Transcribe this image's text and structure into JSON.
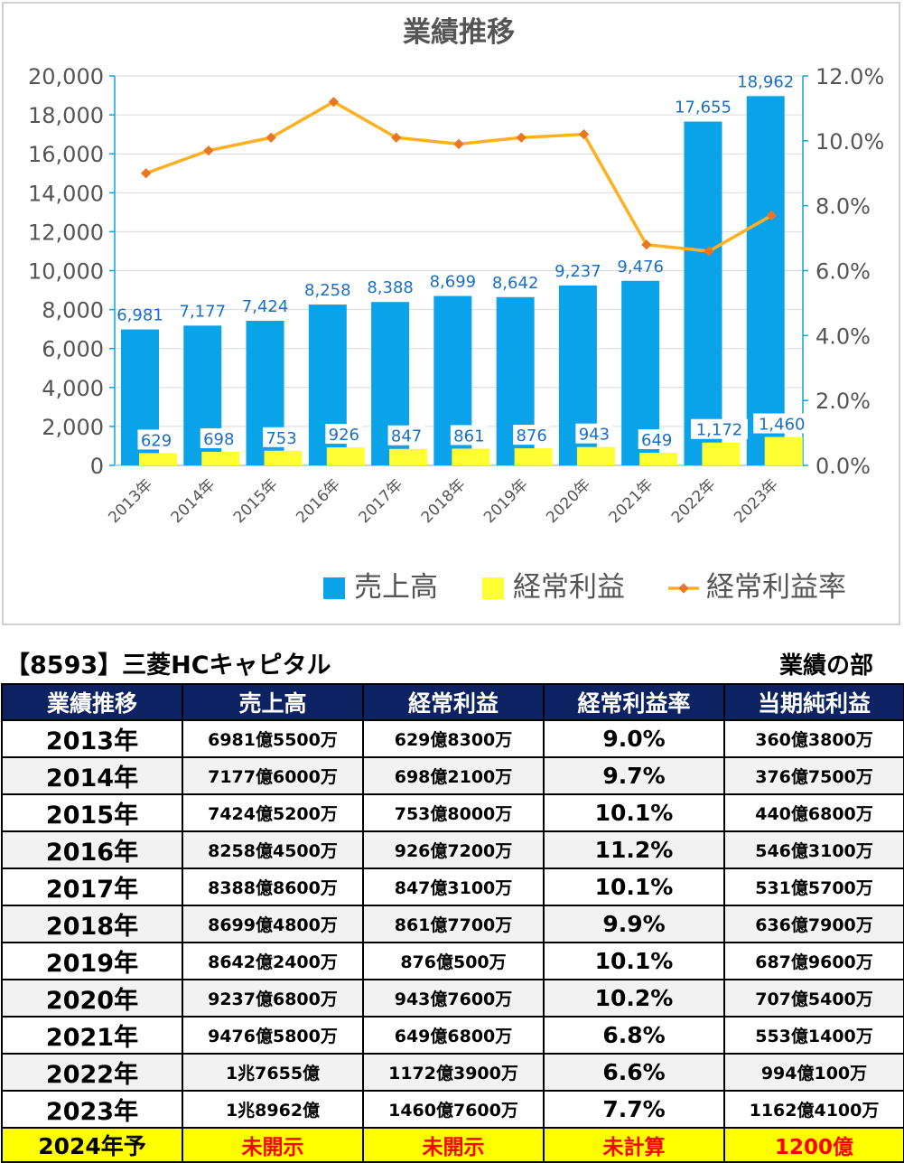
{
  "chart_data": {
    "type": "bar",
    "title": "業績推移",
    "categories": [
      "2013年",
      "2014年",
      "2015年",
      "2016年",
      "2017年",
      "2018年",
      "2019年",
      "2020年",
      "2021年",
      "2022年",
      "2023年"
    ],
    "series": [
      {
        "name": "売上高",
        "type": "bar",
        "axis": "left",
        "color": "#0aa2e8",
        "values": [
          6981,
          7177,
          7424,
          8258,
          8388,
          8699,
          8642,
          9237,
          9476,
          17655,
          18962
        ],
        "labels": [
          "6,981",
          "7,177",
          "7,424",
          "8,258",
          "8,388",
          "8,699",
          "8,642",
          "9,237",
          "9,476",
          "17,655",
          "18,962"
        ]
      },
      {
        "name": "経常利益",
        "type": "bar",
        "axis": "left",
        "color": "#ffff33",
        "values": [
          629,
          698,
          753,
          926,
          847,
          861,
          876,
          943,
          649,
          1172,
          1460
        ],
        "labels": [
          "629",
          "698",
          "753",
          "926",
          "847",
          "861",
          "876",
          "943",
          "649",
          "1,172",
          "1,460"
        ]
      },
      {
        "name": "経常利益率",
        "type": "line",
        "axis": "right",
        "color": "#ffb020",
        "marker_color": "#e87722",
        "values": [
          9.0,
          9.7,
          10.1,
          11.2,
          10.1,
          9.9,
          10.1,
          10.2,
          6.8,
          6.6,
          7.7
        ]
      }
    ],
    "y_left": {
      "min": 0,
      "max": 20000,
      "ticks": [
        "0",
        "2,000",
        "4,000",
        "6,000",
        "8,000",
        "10,000",
        "12,000",
        "14,000",
        "16,000",
        "18,000",
        "20,000"
      ]
    },
    "y_right": {
      "min": 0,
      "max": 12,
      "ticks": [
        "0.0%",
        "2.0%",
        "4.0%",
        "6.0%",
        "8.0%",
        "10.0%",
        "12.0%"
      ]
    },
    "grid": true,
    "legend_position": "bottom-right",
    "label_color": "#1a6fc4"
  },
  "header": {
    "company": "【8593】三菱HCキャピタル",
    "section": "業績の部"
  },
  "table": {
    "columns": [
      "業績推移",
      "売上高",
      "経常利益",
      "経常利益率",
      "当期純利益"
    ],
    "rows": [
      [
        "2013年",
        "6981億5500万",
        "629億8300万",
        "9.0%",
        "360億3800万"
      ],
      [
        "2014年",
        "7177億6000万",
        "698億2100万",
        "9.7%",
        "376億7500万"
      ],
      [
        "2015年",
        "7424億5200万",
        "753億8000万",
        "10.1%",
        "440億6800万"
      ],
      [
        "2016年",
        "8258億4500万",
        "926億7200万",
        "11.2%",
        "546億3100万"
      ],
      [
        "2017年",
        "8388億8600万",
        "847億3100万",
        "10.1%",
        "531億5700万"
      ],
      [
        "2018年",
        "8699億4800万",
        "861億7700万",
        "9.9%",
        "636億7900万"
      ],
      [
        "2019年",
        "8642億2400万",
        "876億500万",
        "10.1%",
        "687億9600万"
      ],
      [
        "2020年",
        "9237億6800万",
        "943億7600万",
        "10.2%",
        "707億5400万"
      ],
      [
        "2021年",
        "9476億5800万",
        "649億6800万",
        "6.8%",
        "553億1400万"
      ],
      [
        "2022年",
        "1兆7655億",
        "1172億3900万",
        "6.6%",
        "994億100万"
      ],
      [
        "2023年",
        "1兆8962億",
        "1460億7600万",
        "7.7%",
        "1162億4100万"
      ]
    ],
    "forecast": [
      "2024年予",
      "未開示",
      "未開示",
      "未計算",
      "1200億"
    ]
  }
}
